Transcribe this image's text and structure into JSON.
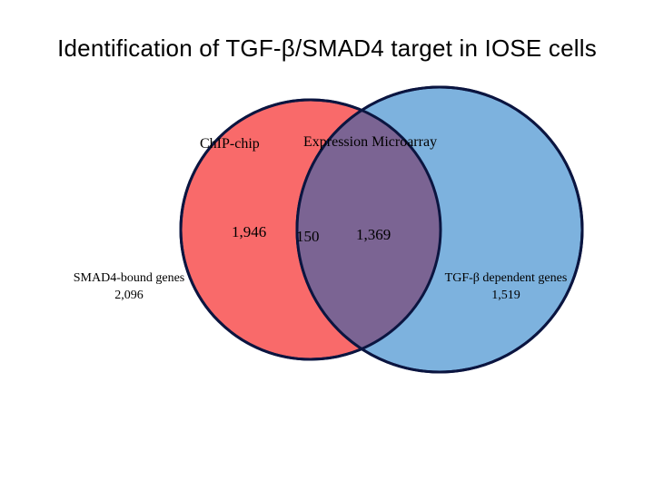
{
  "slide": {
    "title": "Identification of TGF-β/SMAD4 target in IOSE cells"
  },
  "venn": {
    "left_set": {
      "header": "ChIP-chip",
      "unique_count": "1,946",
      "label_line1": "SMAD4-bound genes",
      "label_line2": "2,096",
      "fill": "#f96a6a"
    },
    "right_set": {
      "header": "Expression Microarray",
      "unique_count": "1,369",
      "label_line1": "TGF-β dependent genes",
      "label_line2": "1,519",
      "fill": "#7db2de"
    },
    "overlap": {
      "count": "150",
      "fill": "#7b6493"
    },
    "outline_color": "#0b1540"
  }
}
